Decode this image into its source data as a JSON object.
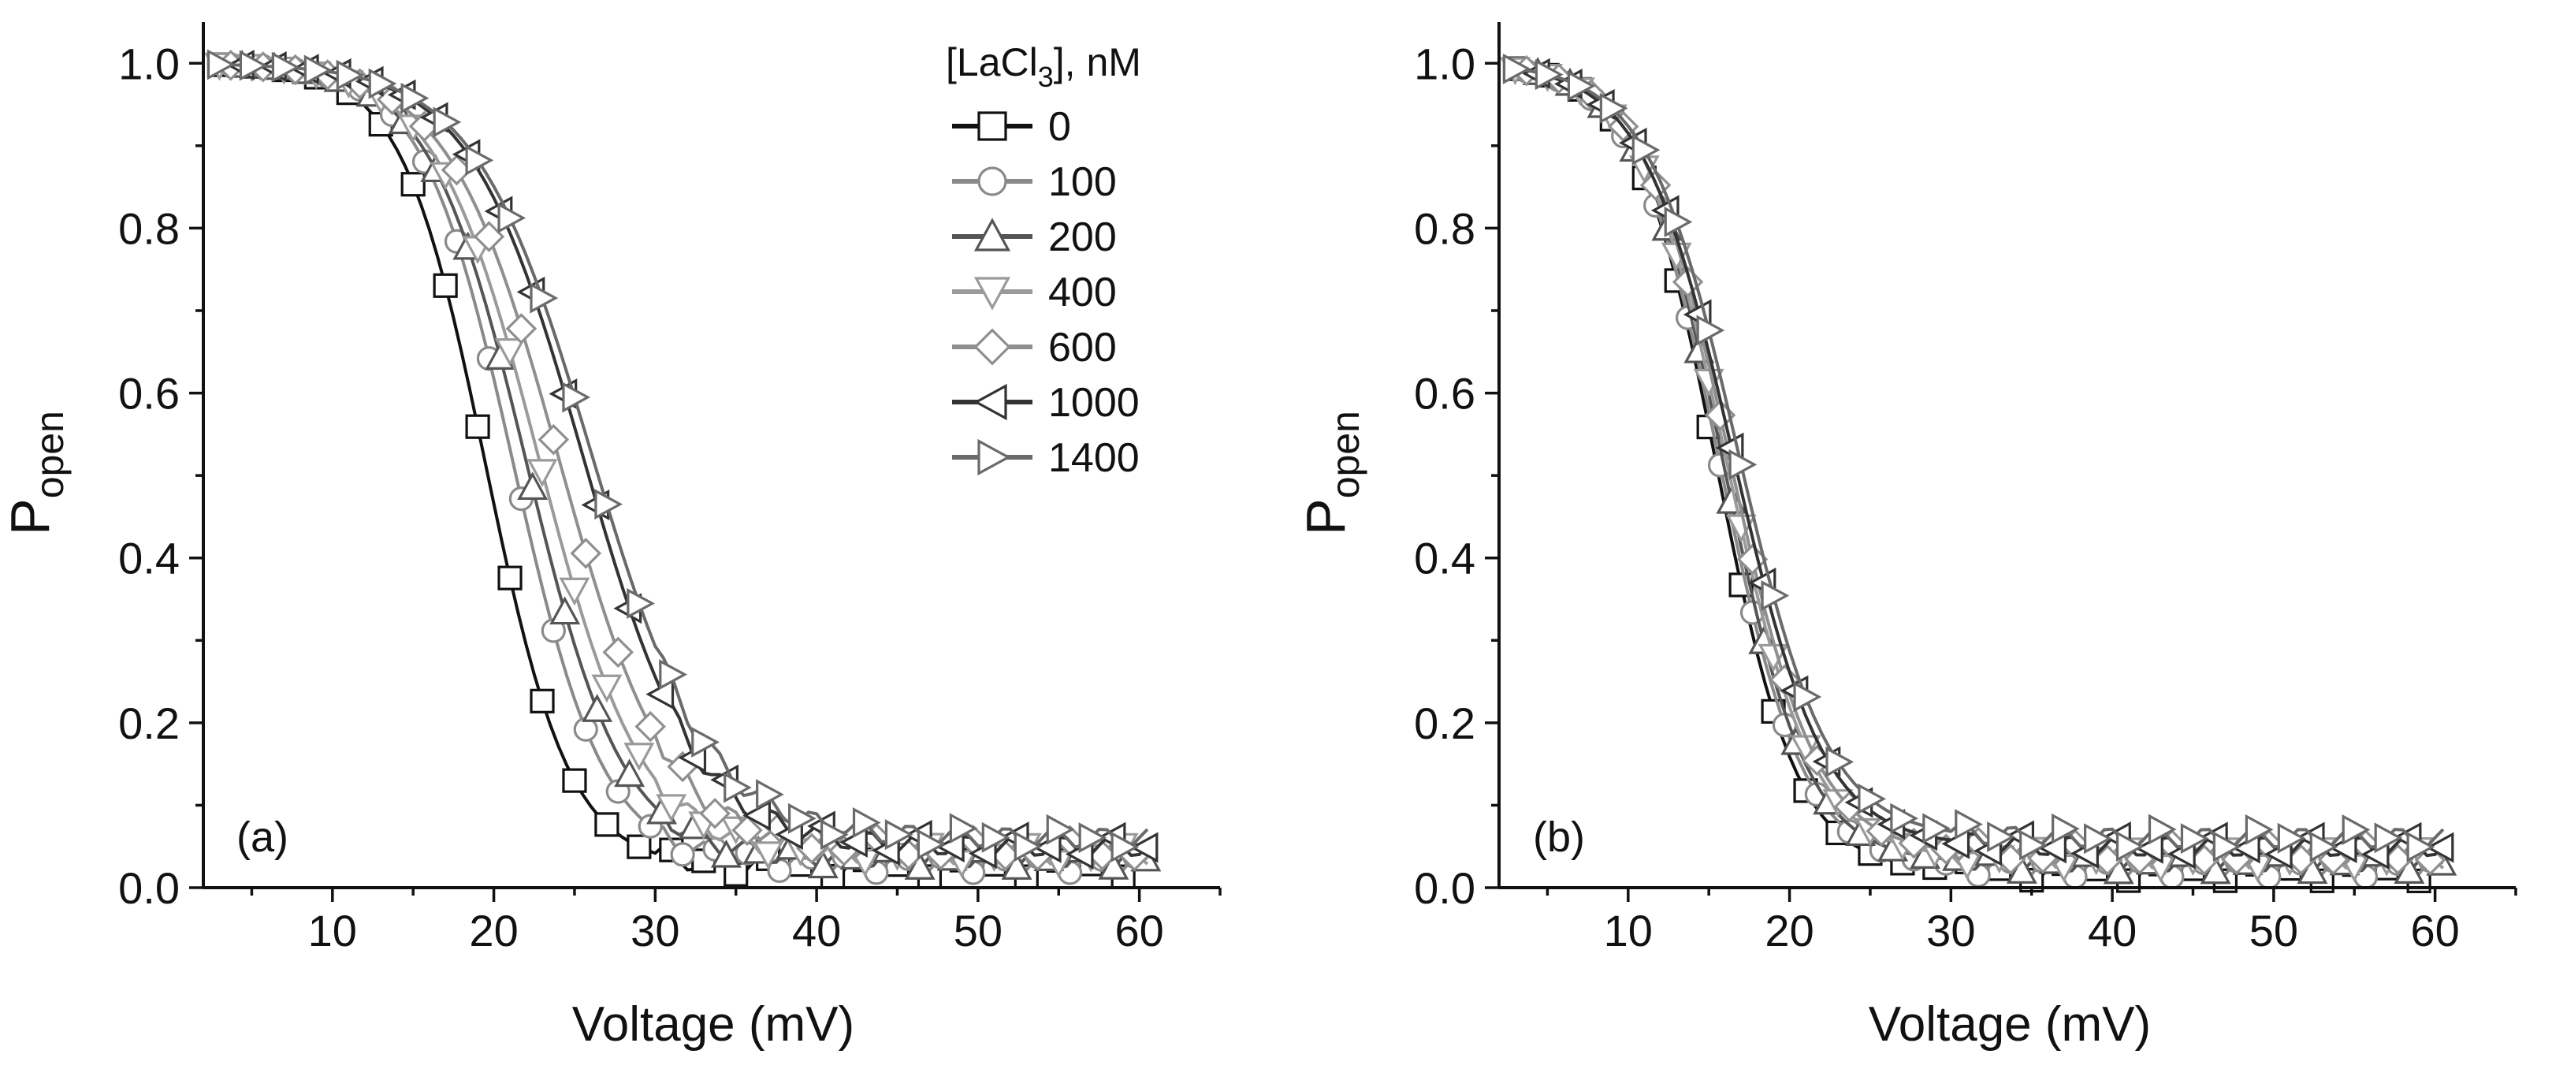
{
  "chart_data": [
    {
      "type": "line",
      "panel_label": "(a)",
      "xlabel": "Voltage (mV)",
      "ylabel_main": "P",
      "ylabel_sub": "open",
      "xlim": [
        2,
        65
      ],
      "ylim": [
        0,
        1.05
      ],
      "xticks": [
        "10",
        "20",
        "30",
        "40",
        "50",
        "60"
      ],
      "yticks": [
        "0.0",
        "0.2",
        "0.4",
        "0.6",
        "0.8",
        "1.0"
      ],
      "legend": {
        "title_main": "[LaCl",
        "title_sub": "3",
        "title_tail": "], nM",
        "placement": "top-right"
      },
      "series": [
        {
          "name": "0",
          "marker": "square",
          "color": "#111111",
          "v_half": 19.5,
          "k": 2.6,
          "base": 0.025
        },
        {
          "name": "100",
          "marker": "circle",
          "color": "#8a8a8a",
          "v_half": 21.2,
          "k": 2.8,
          "base": 0.03
        },
        {
          "name": "200",
          "marker": "triangle-up",
          "color": "#555555",
          "v_half": 22.0,
          "k": 3.0,
          "base": 0.035
        },
        {
          "name": "400",
          "marker": "triangle-down",
          "color": "#9a9a9a",
          "v_half": 22.8,
          "k": 3.2,
          "base": 0.04
        },
        {
          "name": "600",
          "marker": "diamond",
          "color": "#8f8f8f",
          "v_half": 24.0,
          "k": 3.4,
          "base": 0.045
        },
        {
          "name": "1000",
          "marker": "triangle-left",
          "color": "#333333",
          "v_half": 25.5,
          "k": 3.5,
          "base": 0.05
        },
        {
          "name": "1400",
          "marker": "triangle-right",
          "color": "#6a6a6a",
          "v_half": 26.0,
          "k": 3.6,
          "base": 0.06
        }
      ]
    },
    {
      "type": "line",
      "panel_label": "(b)",
      "xlabel": "Voltage (mV)",
      "ylabel_main": "P",
      "ylabel_sub": "open",
      "xlim": [
        2,
        65
      ],
      "ylim": [
        0,
        1.05
      ],
      "xticks": [
        "10",
        "20",
        "30",
        "40",
        "50",
        "60"
      ],
      "yticks": [
        "0.0",
        "0.2",
        "0.4",
        "0.6",
        "0.8",
        "1.0"
      ],
      "series": [
        {
          "name": "0",
          "marker": "square",
          "color": "#111111",
          "v_half": 15.5,
          "k": 2.5,
          "base": 0.02
        },
        {
          "name": "100",
          "marker": "circle",
          "color": "#8a8a8a",
          "v_half": 15.7,
          "k": 2.6,
          "base": 0.025
        },
        {
          "name": "200",
          "marker": "triangle-up",
          "color": "#555555",
          "v_half": 15.9,
          "k": 2.6,
          "base": 0.03
        },
        {
          "name": "400",
          "marker": "triangle-down",
          "color": "#9a9a9a",
          "v_half": 16.1,
          "k": 2.7,
          "base": 0.035
        },
        {
          "name": "600",
          "marker": "diamond",
          "color": "#8f8f8f",
          "v_half": 16.3,
          "k": 2.7,
          "base": 0.04
        },
        {
          "name": "1000",
          "marker": "triangle-left",
          "color": "#333333",
          "v_half": 16.5,
          "k": 2.8,
          "base": 0.05
        },
        {
          "name": "1400",
          "marker": "triangle-right",
          "color": "#6a6a6a",
          "v_half": 16.8,
          "k": 2.8,
          "base": 0.06
        }
      ]
    }
  ]
}
